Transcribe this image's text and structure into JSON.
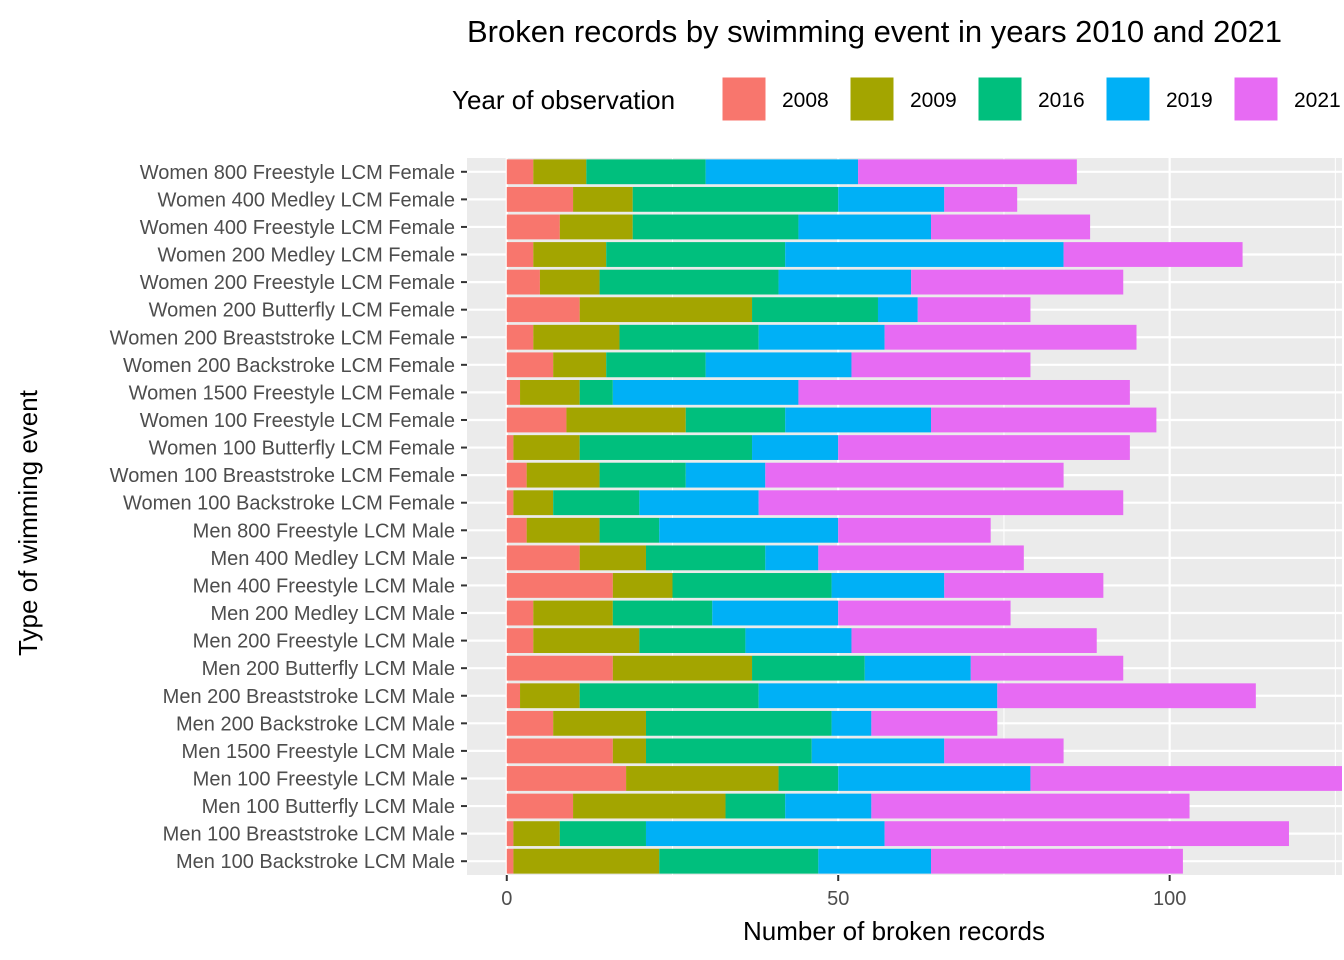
{
  "chart_data": {
    "type": "bar",
    "orientation": "horizontal",
    "stacked": true,
    "title": "Broken records by swimming event in years 2010 and 2021",
    "xlabel": "Number of broken records",
    "ylabel": "Type of wimming event",
    "xlim": [
      -6,
      126
    ],
    "xticks": [
      0,
      50,
      100
    ],
    "grid": true,
    "legend": {
      "title": "Year of observation",
      "position": "top"
    },
    "categories": [
      "Women 800 Freestyle LCM Female",
      "Women 400 Medley LCM Female",
      "Women 400 Freestyle LCM Female",
      "Women 200 Medley LCM Female",
      "Women 200 Freestyle LCM Female",
      "Women 200 Butterfly LCM Female",
      "Women 200 Breaststroke LCM Female",
      "Women 200 Backstroke LCM Female",
      "Women 1500 Freestyle LCM Female",
      "Women 100 Freestyle LCM Female",
      "Women 100 Butterfly LCM Female",
      "Women 100 Breaststroke LCM Female",
      "Women 100 Backstroke LCM Female",
      "Men 800 Freestyle LCM Male",
      "Men 400 Medley LCM Male",
      "Men 400 Freestyle LCM Male",
      "Men 200 Medley LCM Male",
      "Men 200 Freestyle LCM Male",
      "Men 200 Butterfly LCM Male",
      "Men 200 Breaststroke LCM Male",
      "Men 200 Backstroke LCM Male",
      "Men 1500 Freestyle LCM Male",
      "Men 100 Freestyle LCM Male",
      "Men 100 Butterfly LCM Male",
      "Men 100 Breaststroke LCM Male",
      "Men 100 Backstroke LCM Male"
    ],
    "series": [
      {
        "name": "2008",
        "color": "#F8766D",
        "values": [
          4,
          10,
          8,
          4,
          5,
          11,
          4,
          7,
          2,
          9,
          1,
          3,
          1,
          3,
          11,
          16,
          4,
          4,
          16,
          2,
          7,
          16,
          18,
          10,
          1,
          1
        ]
      },
      {
        "name": "2009",
        "color": "#A3A500",
        "values": [
          8,
          9,
          11,
          11,
          9,
          26,
          13,
          8,
          9,
          18,
          10,
          11,
          6,
          11,
          10,
          9,
          12,
          16,
          21,
          9,
          14,
          5,
          23,
          23,
          7,
          22
        ]
      },
      {
        "name": "2016",
        "color": "#00BF7D",
        "values": [
          18,
          31,
          25,
          27,
          27,
          19,
          21,
          15,
          5,
          15,
          26,
          13,
          13,
          9,
          18,
          24,
          15,
          16,
          17,
          27,
          28,
          25,
          9,
          9,
          13,
          24
        ]
      },
      {
        "name": "2019",
        "color": "#00B0F6",
        "values": [
          23,
          16,
          20,
          42,
          20,
          6,
          19,
          22,
          28,
          22,
          13,
          12,
          18,
          27,
          8,
          17,
          19,
          16,
          16,
          36,
          6,
          20,
          29,
          13,
          36,
          17
        ]
      },
      {
        "name": "2021",
        "color": "#E76BF3",
        "values": [
          33,
          11,
          24,
          27,
          32,
          17,
          38,
          27,
          50,
          34,
          44,
          45,
          55,
          23,
          31,
          24,
          26,
          37,
          23,
          39,
          19,
          18,
          47,
          48,
          61,
          38
        ]
      }
    ]
  }
}
